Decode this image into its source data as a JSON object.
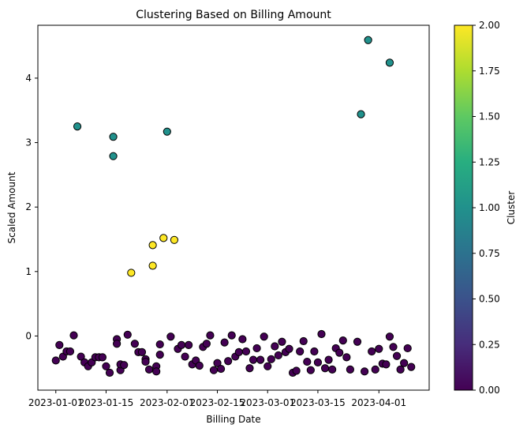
{
  "chart_data": {
    "type": "scatter",
    "title": "Clustering Based on Billing Amount",
    "xlabel": "Billing Date",
    "ylabel": "Scaled Amount",
    "colorbar_label": "Cluster",
    "x_range": [
      "2022-12-27",
      "2023-04-15"
    ],
    "ylim": [
      -0.84,
      4.82
    ],
    "x_ticks": [
      {
        "date": "2023-01-01",
        "label": "2023-01-01"
      },
      {
        "date": "2023-01-15",
        "label": "2023-01-15"
      },
      {
        "date": "2023-02-01",
        "label": "2023-02-01"
      },
      {
        "date": "2023-02-15",
        "label": "2023-02-15"
      },
      {
        "date": "2023-03-01",
        "label": "2023-03-01"
      },
      {
        "date": "2023-03-15",
        "label": "2023-03-15"
      },
      {
        "date": "2023-04-01",
        "label": "2023-04-01"
      }
    ],
    "y_ticks": [
      0,
      1,
      2,
      3,
      4
    ],
    "colorbar_ticks": [
      "0.00",
      "0.25",
      "0.50",
      "0.75",
      "1.00",
      "1.25",
      "1.50",
      "1.75",
      "2.00"
    ],
    "colorbar_range": [
      0,
      2
    ],
    "grid": false,
    "cluster_colors": {
      "0": "#440154",
      "1": "#21918c",
      "2": "#fde725"
    },
    "points": [
      {
        "x": "2023-01-07",
        "y": 3.25,
        "cluster": 1
      },
      {
        "x": "2023-01-17",
        "y": 3.09,
        "cluster": 1
      },
      {
        "x": "2023-01-17",
        "y": 2.79,
        "cluster": 1
      },
      {
        "x": "2023-02-01",
        "y": 3.17,
        "cluster": 1
      },
      {
        "x": "2023-03-27",
        "y": 3.44,
        "cluster": 1
      },
      {
        "x": "2023-03-29",
        "y": 4.59,
        "cluster": 1
      },
      {
        "x": "2023-04-04",
        "y": 4.24,
        "cluster": 1
      },
      {
        "x": "2023-01-22",
        "y": 0.98,
        "cluster": 2
      },
      {
        "x": "2023-01-28",
        "y": 1.41,
        "cluster": 2
      },
      {
        "x": "2023-01-28",
        "y": 1.09,
        "cluster": 2
      },
      {
        "x": "2023-01-31",
        "y": 1.52,
        "cluster": 2
      },
      {
        "x": "2023-02-03",
        "y": 1.49,
        "cluster": 2
      },
      {
        "x": "2023-01-01",
        "y": -0.38,
        "cluster": 0
      },
      {
        "x": "2023-01-02",
        "y": -0.14,
        "cluster": 0
      },
      {
        "x": "2023-01-03",
        "y": -0.32,
        "cluster": 0
      },
      {
        "x": "2023-01-04",
        "y": -0.24,
        "cluster": 0
      },
      {
        "x": "2023-01-05",
        "y": -0.24,
        "cluster": 0
      },
      {
        "x": "2023-01-06",
        "y": 0.01,
        "cluster": 0
      },
      {
        "x": "2023-01-08",
        "y": -0.32,
        "cluster": 0
      },
      {
        "x": "2023-01-09",
        "y": -0.41,
        "cluster": 0
      },
      {
        "x": "2023-01-10",
        "y": -0.47,
        "cluster": 0
      },
      {
        "x": "2023-01-11",
        "y": -0.41,
        "cluster": 0
      },
      {
        "x": "2023-01-12",
        "y": -0.33,
        "cluster": 0
      },
      {
        "x": "2023-01-13",
        "y": -0.33,
        "cluster": 0
      },
      {
        "x": "2023-01-14",
        "y": -0.33,
        "cluster": 0
      },
      {
        "x": "2023-01-15",
        "y": -0.47,
        "cluster": 0
      },
      {
        "x": "2023-01-16",
        "y": -0.57,
        "cluster": 0
      },
      {
        "x": "2023-01-18",
        "y": -0.05,
        "cluster": 0
      },
      {
        "x": "2023-01-18",
        "y": -0.12,
        "cluster": 0
      },
      {
        "x": "2023-01-19",
        "y": -0.53,
        "cluster": 0
      },
      {
        "x": "2023-01-19",
        "y": -0.44,
        "cluster": 0
      },
      {
        "x": "2023-01-20",
        "y": -0.45,
        "cluster": 0
      },
      {
        "x": "2023-01-21",
        "y": 0.02,
        "cluster": 0
      },
      {
        "x": "2023-01-23",
        "y": -0.12,
        "cluster": 0
      },
      {
        "x": "2023-01-24",
        "y": -0.25,
        "cluster": 0
      },
      {
        "x": "2023-01-25",
        "y": -0.25,
        "cluster": 0
      },
      {
        "x": "2023-01-26",
        "y": -0.36,
        "cluster": 0
      },
      {
        "x": "2023-01-26",
        "y": -0.4,
        "cluster": 0
      },
      {
        "x": "2023-01-27",
        "y": -0.52,
        "cluster": 0
      },
      {
        "x": "2023-01-29",
        "y": -0.47,
        "cluster": 0
      },
      {
        "x": "2023-01-29",
        "y": -0.55,
        "cluster": 0
      },
      {
        "x": "2023-01-30",
        "y": -0.13,
        "cluster": 0
      },
      {
        "x": "2023-01-30",
        "y": -0.29,
        "cluster": 0
      },
      {
        "x": "2023-02-02",
        "y": -0.01,
        "cluster": 0
      },
      {
        "x": "2023-02-04",
        "y": -0.2,
        "cluster": 0
      },
      {
        "x": "2023-02-05",
        "y": -0.14,
        "cluster": 0
      },
      {
        "x": "2023-02-06",
        "y": -0.32,
        "cluster": 0
      },
      {
        "x": "2023-02-07",
        "y": -0.14,
        "cluster": 0
      },
      {
        "x": "2023-02-08",
        "y": -0.44,
        "cluster": 0
      },
      {
        "x": "2023-02-09",
        "y": -0.38,
        "cluster": 0
      },
      {
        "x": "2023-02-10",
        "y": -0.46,
        "cluster": 0
      },
      {
        "x": "2023-02-11",
        "y": -0.17,
        "cluster": 0
      },
      {
        "x": "2023-02-12",
        "y": -0.12,
        "cluster": 0
      },
      {
        "x": "2023-02-13",
        "y": 0.01,
        "cluster": 0
      },
      {
        "x": "2023-02-14",
        "y": -0.53,
        "cluster": 0
      },
      {
        "x": "2023-02-15",
        "y": -0.42,
        "cluster": 0
      },
      {
        "x": "2023-02-16",
        "y": -0.51,
        "cluster": 0
      },
      {
        "x": "2023-02-17",
        "y": -0.1,
        "cluster": 0
      },
      {
        "x": "2023-02-18",
        "y": -0.39,
        "cluster": 0
      },
      {
        "x": "2023-02-19",
        "y": 0.01,
        "cluster": 0
      },
      {
        "x": "2023-02-20",
        "y": -0.32,
        "cluster": 0
      },
      {
        "x": "2023-02-21",
        "y": -0.25,
        "cluster": 0
      },
      {
        "x": "2023-02-22",
        "y": -0.05,
        "cluster": 0
      },
      {
        "x": "2023-02-23",
        "y": -0.24,
        "cluster": 0
      },
      {
        "x": "2023-02-24",
        "y": -0.5,
        "cluster": 0
      },
      {
        "x": "2023-02-25",
        "y": -0.37,
        "cluster": 0
      },
      {
        "x": "2023-02-26",
        "y": -0.19,
        "cluster": 0
      },
      {
        "x": "2023-02-27",
        "y": -0.37,
        "cluster": 0
      },
      {
        "x": "2023-02-28",
        "y": -0.01,
        "cluster": 0
      },
      {
        "x": "2023-03-01",
        "y": -0.47,
        "cluster": 0
      },
      {
        "x": "2023-03-02",
        "y": -0.36,
        "cluster": 0
      },
      {
        "x": "2023-03-03",
        "y": -0.16,
        "cluster": 0
      },
      {
        "x": "2023-03-04",
        "y": -0.3,
        "cluster": 0
      },
      {
        "x": "2023-03-05",
        "y": -0.09,
        "cluster": 0
      },
      {
        "x": "2023-03-06",
        "y": -0.25,
        "cluster": 0
      },
      {
        "x": "2023-03-07",
        "y": -0.2,
        "cluster": 0
      },
      {
        "x": "2023-03-08",
        "y": -0.57,
        "cluster": 0
      },
      {
        "x": "2023-03-09",
        "y": -0.54,
        "cluster": 0
      },
      {
        "x": "2023-03-10",
        "y": -0.24,
        "cluster": 0
      },
      {
        "x": "2023-03-11",
        "y": -0.08,
        "cluster": 0
      },
      {
        "x": "2023-03-12",
        "y": -0.4,
        "cluster": 0
      },
      {
        "x": "2023-03-13",
        "y": -0.53,
        "cluster": 0
      },
      {
        "x": "2023-03-14",
        "y": -0.24,
        "cluster": 0
      },
      {
        "x": "2023-03-15",
        "y": -0.41,
        "cluster": 0
      },
      {
        "x": "2023-03-16",
        "y": 0.03,
        "cluster": 0
      },
      {
        "x": "2023-03-17",
        "y": -0.5,
        "cluster": 0
      },
      {
        "x": "2023-03-18",
        "y": -0.37,
        "cluster": 0
      },
      {
        "x": "2023-03-19",
        "y": -0.52,
        "cluster": 0
      },
      {
        "x": "2023-03-20",
        "y": -0.19,
        "cluster": 0
      },
      {
        "x": "2023-03-21",
        "y": -0.26,
        "cluster": 0
      },
      {
        "x": "2023-03-22",
        "y": -0.07,
        "cluster": 0
      },
      {
        "x": "2023-03-23",
        "y": -0.33,
        "cluster": 0
      },
      {
        "x": "2023-03-24",
        "y": -0.52,
        "cluster": 0
      },
      {
        "x": "2023-03-26",
        "y": -0.09,
        "cluster": 0
      },
      {
        "x": "2023-03-28",
        "y": -0.55,
        "cluster": 0
      },
      {
        "x": "2023-03-30",
        "y": -0.24,
        "cluster": 0
      },
      {
        "x": "2023-03-31",
        "y": -0.52,
        "cluster": 0
      },
      {
        "x": "2023-04-01",
        "y": -0.2,
        "cluster": 0
      },
      {
        "x": "2023-04-02",
        "y": -0.43,
        "cluster": 0
      },
      {
        "x": "2023-04-03",
        "y": -0.44,
        "cluster": 0
      },
      {
        "x": "2023-04-04",
        "y": -0.01,
        "cluster": 0
      },
      {
        "x": "2023-04-05",
        "y": -0.17,
        "cluster": 0
      },
      {
        "x": "2023-04-06",
        "y": -0.31,
        "cluster": 0
      },
      {
        "x": "2023-04-07",
        "y": -0.52,
        "cluster": 0
      },
      {
        "x": "2023-04-08",
        "y": -0.42,
        "cluster": 0
      },
      {
        "x": "2023-04-09",
        "y": -0.19,
        "cluster": 0
      },
      {
        "x": "2023-04-10",
        "y": -0.48,
        "cluster": 0
      }
    ]
  }
}
